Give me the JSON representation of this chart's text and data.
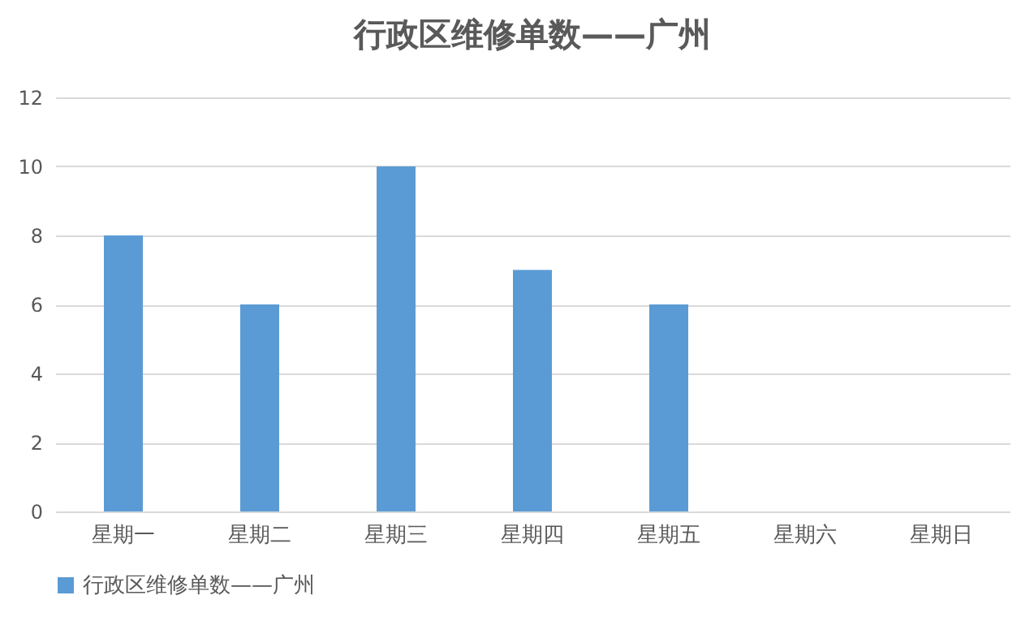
{
  "chart_data": {
    "type": "bar",
    "title": "行政区维修单数——广州",
    "categories": [
      "星期一",
      "星期二",
      "星期三",
      "星期四",
      "星期五",
      "星期六",
      "星期日"
    ],
    "series": [
      {
        "name": "行政区维修单数——广州",
        "color": "#5b9bd5",
        "values": [
          8,
          6,
          10,
          7,
          6,
          0,
          0
        ]
      }
    ],
    "ylim": [
      0,
      12
    ],
    "yticks": [
      0,
      2,
      4,
      6,
      8,
      10,
      12
    ],
    "grid": "y",
    "legend": "bottom"
  }
}
